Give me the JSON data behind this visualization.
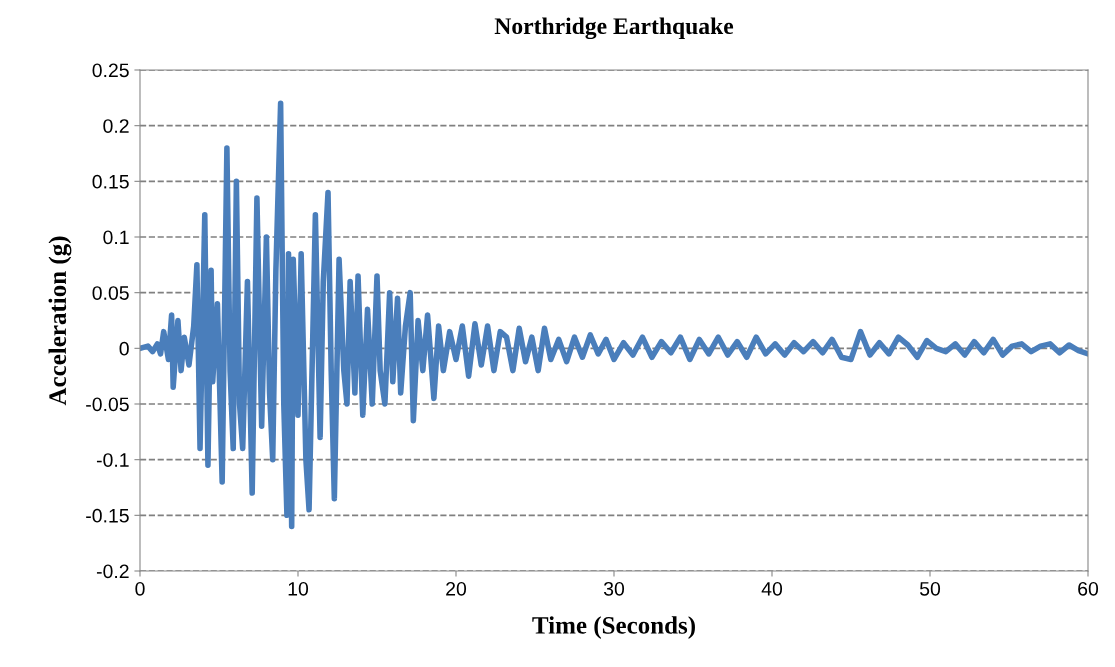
{
  "chart_data": {
    "type": "line",
    "title": "Northridge Earthquake",
    "xlabel": "Time (Seconds)",
    "ylabel": "Acceleration (g)",
    "xlim": [
      0,
      60
    ],
    "xticks": [
      0,
      10,
      20,
      30,
      40,
      50,
      60
    ],
    "ylim": [
      -0.2,
      0.25
    ],
    "yticks": [
      -0.2,
      -0.15,
      -0.1,
      -0.05,
      0,
      0.05,
      0.1,
      0.15,
      0.2,
      0.25
    ],
    "grid": "y",
    "legend": false,
    "marker": "none",
    "series": [
      {
        "color": "#4a7ebb",
        "x": [
          0,
          0.5,
          0.8,
          1.1,
          1.3,
          1.5,
          1.8,
          2.0,
          2.1,
          2.4,
          2.6,
          2.8,
          3.1,
          3.4,
          3.6,
          3.8,
          4.0,
          4.1,
          4.3,
          4.5,
          4.6,
          4.9,
          5.2,
          5.5,
          5.7,
          5.9,
          6.1,
          6.3,
          6.5,
          6.8,
          7.1,
          7.4,
          7.7,
          8.0,
          8.2,
          8.4,
          8.6,
          8.9,
          9.1,
          9.3,
          9.4,
          9.6,
          9.7,
          10.0,
          10.2,
          10.5,
          10.7,
          11.1,
          11.4,
          11.6,
          11.9,
          12.1,
          12.3,
          12.6,
          12.9,
          13.1,
          13.3,
          13.6,
          13.8,
          14.1,
          14.4,
          14.7,
          15.0,
          15.2,
          15.5,
          15.8,
          16.0,
          16.3,
          16.5,
          16.8,
          17.1,
          17.3,
          17.6,
          17.9,
          18.2,
          18.6,
          18.9,
          19.2,
          19.6,
          20.0,
          20.4,
          20.8,
          21.2,
          21.6,
          22.0,
          22.4,
          22.8,
          23.2,
          23.6,
          24.0,
          24.4,
          24.8,
          25.2,
          25.6,
          26.0,
          26.5,
          27.0,
          27.5,
          28.0,
          28.5,
          29.0,
          29.5,
          30.0,
          30.6,
          31.2,
          31.8,
          32.4,
          33.0,
          33.6,
          34.2,
          34.8,
          35.4,
          36.0,
          36.6,
          37.2,
          37.8,
          38.4,
          39.0,
          39.6,
          40.2,
          40.8,
          41.4,
          42.0,
          42.6,
          43.2,
          43.8,
          44.4,
          45.0,
          45.6,
          46.2,
          46.8,
          47.4,
          48.0,
          48.6,
          49.2,
          49.8,
          50.4,
          51.0,
          51.6,
          52.2,
          52.8,
          53.4,
          54.0,
          54.6,
          55.2,
          55.8,
          56.4,
          57.0,
          57.6,
          58.2,
          58.8,
          59.4,
          60.0
        ],
        "values": [
          0,
          0.002,
          -0.003,
          0.004,
          -0.005,
          0.015,
          -0.01,
          0.03,
          -0.035,
          0.025,
          -0.02,
          0.01,
          -0.015,
          0.02,
          0.075,
          -0.09,
          0.05,
          0.12,
          -0.105,
          0.07,
          -0.03,
          0.04,
          -0.12,
          0.18,
          -0.02,
          -0.09,
          0.15,
          -0.05,
          -0.09,
          0.06,
          -0.13,
          0.135,
          -0.07,
          0.1,
          -0.04,
          -0.1,
          0.07,
          0.22,
          -0.05,
          -0.15,
          0.085,
          -0.16,
          0.08,
          -0.06,
          0.085,
          -0.1,
          -0.145,
          0.12,
          -0.08,
          0.06,
          0.14,
          -0.02,
          -0.135,
          0.08,
          -0.02,
          -0.05,
          0.06,
          -0.04,
          0.065,
          -0.06,
          0.035,
          -0.05,
          0.065,
          -0.02,
          -0.05,
          0.05,
          -0.03,
          0.045,
          -0.04,
          0.02,
          0.05,
          -0.065,
          0.025,
          -0.02,
          0.03,
          -0.045,
          0.02,
          -0.02,
          0.015,
          -0.01,
          0.02,
          -0.025,
          0.022,
          -0.015,
          0.02,
          -0.02,
          0.015,
          0.01,
          -0.02,
          0.018,
          -0.012,
          0.01,
          -0.02,
          0.018,
          -0.01,
          0.008,
          -0.012,
          0.01,
          -0.008,
          0.012,
          -0.005,
          0.008,
          -0.01,
          0.005,
          -0.006,
          0.01,
          -0.008,
          0.006,
          -0.004,
          0.01,
          -0.01,
          0.008,
          -0.005,
          0.01,
          -0.006,
          0.006,
          -0.008,
          0.01,
          -0.005,
          0.004,
          -0.006,
          0.005,
          -0.003,
          0.006,
          -0.004,
          0.008,
          -0.008,
          -0.01,
          0.015,
          -0.006,
          0.005,
          -0.005,
          0.01,
          0.003,
          -0.008,
          0.007,
          0.0,
          -0.003,
          0.004,
          -0.006,
          0.006,
          -0.004,
          0.008,
          -0.006,
          0.002,
          0.004,
          -0.003,
          0.002,
          0.004,
          -0.004,
          0.003,
          -0.002,
          -0.005
        ]
      }
    ]
  }
}
